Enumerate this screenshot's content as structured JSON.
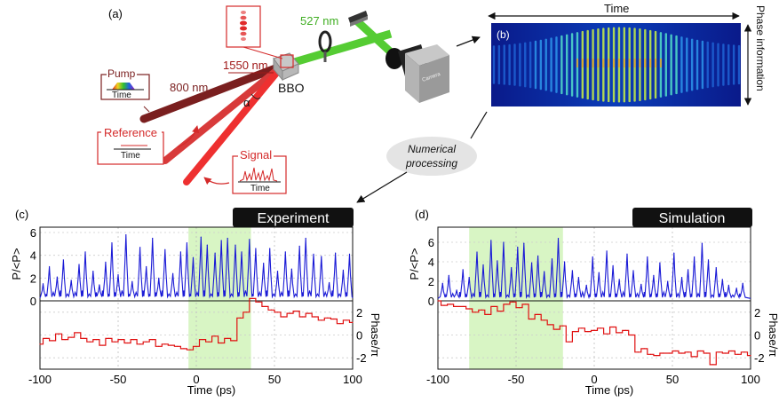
{
  "panels": {
    "a": "(a)",
    "b": "(b)",
    "c": "(c)",
    "d": "(d)"
  },
  "setup": {
    "wl_1550": "1550 nm",
    "wl_800": "800 nm",
    "wl_527": "527 nm",
    "crystal": "BBO",
    "alpha": "α",
    "pump_label": "Pump",
    "pump_axis": "Time",
    "reference_label": "Reference",
    "reference_axis": "Time",
    "signal_label": "Signal",
    "signal_axis": "Time",
    "camera_brand": "Camera"
  },
  "spectrogram": {
    "time_label": "Time",
    "phase_label": "Phase information"
  },
  "processing": {
    "line1": "Numerical",
    "line2": "processing"
  },
  "colors": {
    "red": "#d42a2a",
    "dark_red": "#7a1f1f",
    "blue": "#1a1ad6",
    "trace_red": "#e01010",
    "green": "#55cc33",
    "highlight": "#d8f5c4"
  },
  "chart_data": [
    {
      "type": "line",
      "panel": "(c)",
      "badge": "Experiment",
      "xlabel": "Time (ps)",
      "xlim": [
        -100,
        100
      ],
      "x_ticks": [
        "-100",
        "-50",
        "0",
        "50",
        "100"
      ],
      "top": {
        "ylabel": "P/<P>",
        "ylim": [
          0,
          6
        ],
        "y_ticks": [
          "0",
          "2",
          "4",
          "6"
        ],
        "series": [
          {
            "x": [
              -98,
              -94,
              -89,
              -85,
              -80,
              -75,
              -71,
              -66,
              -62,
              -58,
              -54,
              -50,
              -45,
              -41,
              -36,
              -32,
              -28,
              -24,
              -20,
              -15,
              -10,
              -6,
              -2,
              3,
              7,
              12,
              16,
              20,
              25,
              29,
              34,
              38,
              43,
              47,
              52,
              57,
              61,
              66,
              70,
              75,
              80,
              85,
              89,
              94,
              98
            ],
            "y": [
              1.5,
              3.0,
              2.1,
              3.6,
              1.8,
              3.2,
              4.3,
              2.6,
              1.4,
              3.4,
              5.1,
              2.3,
              5.8,
              1.7,
              4.7,
              3.0,
              5.5,
              2.0,
              4.5,
              2.4,
              4.3,
              5.1,
              3.8,
              5.6,
              4.9,
              4.2,
              5.3,
              5.5,
              4.9,
              4.3,
              5.4,
              4.6,
              3.3,
              4.6,
              2.6,
              4.3,
              2.8,
              4.8,
              5.5,
              4.1,
              3.9,
              1.6,
              4.2,
              2.7,
              4.1
            ]
          }
        ]
      },
      "bottom": {
        "ylabel": "Phase/π",
        "ylim": [
          -3,
          3
        ],
        "y_ticks": [
          "2",
          "0",
          "-2"
        ],
        "series": [
          {
            "x": [
              -100,
              -96,
              -92,
              -88,
              -84,
              -80,
              -76,
              -72,
              -68,
              -64,
              -60,
              -56,
              -52,
              -48,
              -44,
              -40,
              -36,
              -32,
              -28,
              -24,
              -20,
              -16,
              -12,
              -8,
              -4,
              0,
              4,
              8,
              12,
              16,
              20,
              24,
              28,
              32,
              36,
              40,
              44,
              48,
              52,
              56,
              60,
              64,
              68,
              72,
              76,
              80,
              84,
              88,
              92,
              96,
              100
            ],
            "y": [
              -0.8,
              -0.3,
              -0.5,
              0.1,
              -0.4,
              -0.2,
              0.2,
              -0.3,
              -0.6,
              -0.4,
              -0.9,
              -0.3,
              -0.6,
              -0.4,
              -0.7,
              -0.4,
              -0.8,
              -0.6,
              -0.4,
              -1.0,
              -0.8,
              -0.9,
              -1.0,
              -1.2,
              -1.3,
              -1.0,
              -0.4,
              -0.6,
              -0.1,
              -0.7,
              -0.3,
              -0.5,
              1.5,
              2.0,
              3.2,
              2.9,
              2.5,
              2.2,
              2.0,
              1.6,
              1.9,
              2.1,
              1.6,
              1.9,
              1.6,
              1.3,
              1.5,
              1.4,
              1.0,
              1.3,
              1.1
            ]
          }
        ]
      }
    },
    {
      "type": "line",
      "panel": "(d)",
      "badge": "Simulation",
      "xlabel": "Time (ps)",
      "xlim": [
        -100,
        100
      ],
      "x_ticks": [
        "-100",
        "-50",
        "0",
        "50",
        "100"
      ],
      "top": {
        "ylabel": "P/<P>",
        "ylim": [
          0,
          7
        ],
        "y_ticks": [
          "0",
          "2",
          "4",
          "6"
        ],
        "series": [
          {
            "x": [
              -97,
              -93,
              -88,
              -84,
              -80,
              -75,
              -71,
              -66,
              -62,
              -58,
              -53,
              -49,
              -45,
              -40,
              -36,
              -32,
              -27,
              -23,
              -19,
              -14,
              -10,
              -5,
              -1,
              3,
              8,
              12,
              16,
              21,
              25,
              30,
              34,
              38,
              42,
              47,
              51,
              56,
              60,
              64,
              69,
              73,
              78,
              82,
              86,
              91,
              95
            ],
            "y": [
              1.8,
              2.6,
              1.1,
              3.2,
              2.4,
              5.0,
              3.7,
              6.2,
              4.1,
              6.0,
              3.4,
              5.5,
              5.9,
              3.9,
              4.6,
              3.0,
              4.3,
              6.4,
              4.0,
              3.1,
              2.4,
              1.6,
              4.5,
              2.9,
              5.1,
              3.6,
              2.2,
              4.8,
              3.1,
              1.7,
              4.5,
              2.6,
              3.9,
              2.0,
              4.9,
              2.4,
              3.2,
              4.5,
              5.9,
              4.2,
              3.4,
              2.2,
              1.6,
              1.3,
              1.8
            ]
          }
        ]
      },
      "bottom": {
        "ylabel": "Phase/π",
        "ylim": [
          -3,
          3
        ],
        "y_ticks": [
          "2",
          "0",
          "-2"
        ],
        "series": [
          {
            "x": [
              -100,
              -96,
              -92,
              -88,
              -84,
              -80,
              -76,
              -72,
              -68,
              -64,
              -60,
              -56,
              -52,
              -48,
              -44,
              -40,
              -36,
              -32,
              -28,
              -24,
              -20,
              -16,
              -12,
              -8,
              -4,
              0,
              4,
              8,
              12,
              16,
              20,
              24,
              28,
              32,
              36,
              40,
              44,
              48,
              52,
              56,
              60,
              64,
              68,
              72,
              76,
              80,
              84,
              88,
              92,
              96,
              100
            ],
            "y": [
              3.0,
              2.6,
              2.7,
              2.5,
              2.5,
              2.3,
              2.0,
              2.2,
              1.8,
              2.5,
              2.1,
              2.7,
              2.9,
              2.4,
              2.7,
              1.4,
              1.8,
              1.3,
              0.9,
              0.5,
              0.8,
              -0.6,
              0.3,
              0.6,
              0.3,
              0.4,
              0.6,
              0.1,
              0.7,
              0.2,
              0.4,
              0.0,
              -1.5,
              -1.2,
              -1.7,
              -1.8,
              -1.6,
              -1.6,
              -1.4,
              -1.6,
              -1.5,
              -1.9,
              -1.4,
              -1.6,
              -2.6,
              -1.5,
              -1.6,
              -1.4,
              -1.7,
              -1.5,
              -1.8
            ]
          }
        ]
      }
    }
  ]
}
